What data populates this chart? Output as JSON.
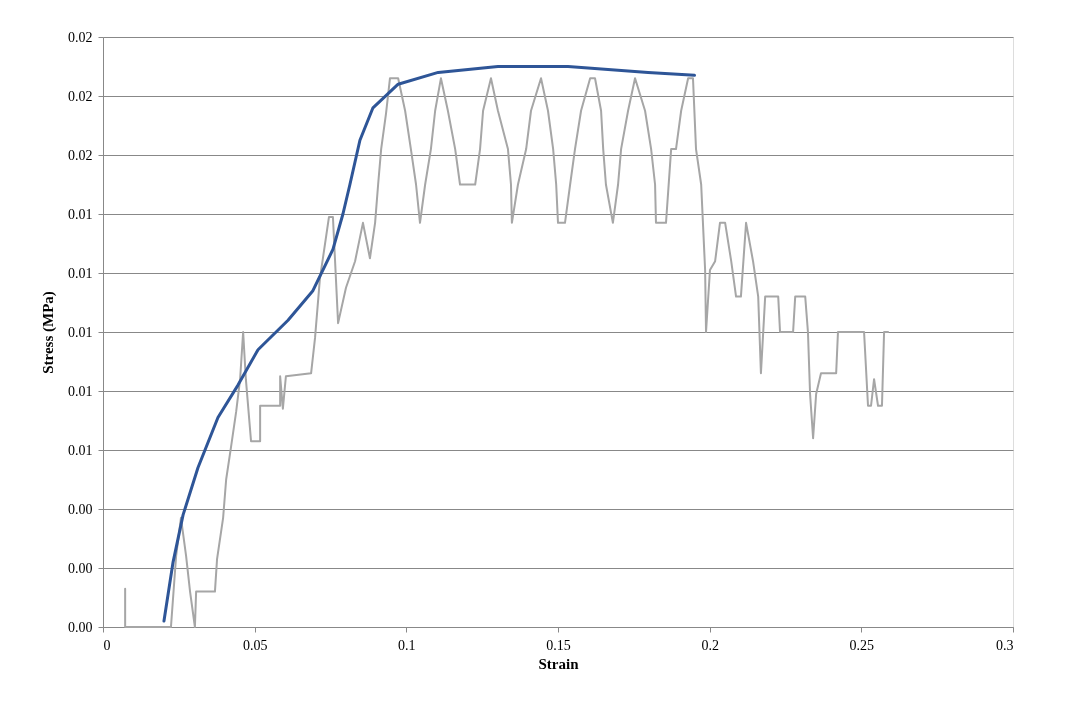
{
  "chart_data": {
    "type": "line",
    "xlabel": "Strain",
    "ylabel": "Stress (MPa)",
    "xlim": [
      0,
      0.3
    ],
    "xticks": [
      0,
      0.05,
      0.1,
      0.15,
      0.2,
      0.25,
      0.3
    ],
    "ylim": [
      0,
      0.02
    ],
    "yticks": [
      {
        "value": 0,
        "label": "0.00"
      },
      {
        "value": 0.002,
        "label": "0.00"
      },
      {
        "value": 0.004,
        "label": "0.00"
      },
      {
        "value": 0.006,
        "label": "0.01"
      },
      {
        "value": 0.008,
        "label": "0.01"
      },
      {
        "value": 0.01,
        "label": "0.01"
      },
      {
        "value": 0.012,
        "label": "0.01"
      },
      {
        "value": 0.014,
        "label": "0.01"
      },
      {
        "value": 0.016,
        "label": "0.02"
      },
      {
        "value": 0.018,
        "label": "0.02"
      },
      {
        "value": 0.02,
        "label": "0.02"
      }
    ],
    "grid": "y",
    "marker": "none",
    "line_style": "solid",
    "series": [
      {
        "color": "#a6a6a6",
        "x": [
          0.0073,
          0.0073,
          0.0073,
          0.0224,
          0.0241,
          0.0257,
          0.0274,
          0.0287,
          0.0303,
          0.0307,
          0.0369,
          0.0376,
          0.0396,
          0.0406,
          0.0422,
          0.0439,
          0.0452,
          0.0462,
          0.0471,
          0.0488,
          0.0518,
          0.0518,
          0.0584,
          0.0584,
          0.0593,
          0.0603,
          0.0686,
          0.0699,
          0.0715,
          0.0745,
          0.0758,
          0.0775,
          0.0801,
          0.0831,
          0.0857,
          0.088,
          0.0897,
          0.0907,
          0.0917,
          0.0933,
          0.0946,
          0.0973,
          0.0996,
          0.1015,
          0.1032,
          0.1045,
          0.1062,
          0.1081,
          0.1095,
          0.1114,
          0.1137,
          0.1161,
          0.1177,
          0.1227,
          0.1243,
          0.1253,
          0.1279,
          0.1302,
          0.1335,
          0.1345,
          0.1348,
          0.1368,
          0.1395,
          0.1411,
          0.1444,
          0.1467,
          0.1484,
          0.1494,
          0.15,
          0.1523,
          0.154,
          0.1556,
          0.1576,
          0.1606,
          0.1622,
          0.1642,
          0.1649,
          0.1658,
          0.1681,
          0.1698,
          0.1708,
          0.1731,
          0.1754,
          0.1787,
          0.1807,
          0.182,
          0.1823,
          0.1856,
          0.1873,
          0.1889,
          0.1906,
          0.1929,
          0.1945,
          0.1955,
          0.1972,
          0.1985,
          0.1988,
          0.2001,
          0.2018,
          0.2034,
          0.2051,
          0.2071,
          0.2087,
          0.2103,
          0.212,
          0.2143,
          0.216,
          0.2169,
          0.2183,
          0.2193,
          0.2226,
          0.2232,
          0.2275,
          0.2282,
          0.2315,
          0.2324,
          0.2331,
          0.2341,
          0.2351,
          0.2367,
          0.2417,
          0.2423,
          0.2456,
          0.2509,
          0.2522,
          0.2532,
          0.2542,
          0.2555,
          0.2568,
          0.2575,
          0.2588
        ],
        "values": [
          0,
          0.0013,
          0,
          0,
          0.0024,
          0.0037,
          0.0024,
          0.0012,
          0,
          0.0012,
          0.0012,
          0.0023,
          0.0037,
          0.005,
          0.0061,
          0.0073,
          0.0084,
          0.01,
          0.0084,
          0.0063,
          0.0063,
          0.0075,
          0.0075,
          0.0085,
          0.0074,
          0.0085,
          0.0086,
          0.0098,
          0.0118,
          0.0139,
          0.0139,
          0.0103,
          0.0115,
          0.0124,
          0.0137,
          0.0125,
          0.0137,
          0.015,
          0.0162,
          0.0174,
          0.0186,
          0.0186,
          0.0175,
          0.0162,
          0.015,
          0.0137,
          0.015,
          0.0162,
          0.0175,
          0.0186,
          0.0175,
          0.0162,
          0.015,
          0.015,
          0.0162,
          0.0175,
          0.0186,
          0.0175,
          0.0162,
          0.015,
          0.0137,
          0.015,
          0.0162,
          0.0175,
          0.0186,
          0.0175,
          0.0162,
          0.015,
          0.0137,
          0.0137,
          0.015,
          0.0162,
          0.0175,
          0.0186,
          0.0186,
          0.0175,
          0.0162,
          0.015,
          0.0137,
          0.015,
          0.0162,
          0.0175,
          0.0186,
          0.0175,
          0.0162,
          0.015,
          0.0137,
          0.0137,
          0.0162,
          0.0162,
          0.0175,
          0.0186,
          0.0186,
          0.0162,
          0.015,
          0.0121,
          0.01,
          0.0121,
          0.0124,
          0.0137,
          0.0137,
          0.0124,
          0.0112,
          0.0112,
          0.0137,
          0.0124,
          0.0112,
          0.0086,
          0.0112,
          0.0112,
          0.0112,
          0.01,
          0.01,
          0.0112,
          0.0112,
          0.01,
          0.0079,
          0.0064,
          0.0079,
          0.0086,
          0.0086,
          0.01,
          0.01,
          0.01,
          0.0075,
          0.0075,
          0.0084,
          0.0075,
          0.0075,
          0.01,
          0.01
        ]
      },
      {
        "color": "#2e5597",
        "x": [
          0.0201,
          0.0231,
          0.0264,
          0.0313,
          0.0379,
          0.0445,
          0.0511,
          0.061,
          0.0692,
          0.0758,
          0.0791,
          0.0814,
          0.0847,
          0.089,
          0.0973,
          0.1105,
          0.1302,
          0.1533,
          0.1797,
          0.195
        ],
        "values": [
          0.0002,
          0.0022,
          0.0038,
          0.0054,
          0.0071,
          0.0082,
          0.0094,
          0.0104,
          0.0114,
          0.0128,
          0.014,
          0.015,
          0.0165,
          0.0176,
          0.0184,
          0.0188,
          0.019,
          0.019,
          0.0188,
          0.0187
        ]
      }
    ]
  }
}
